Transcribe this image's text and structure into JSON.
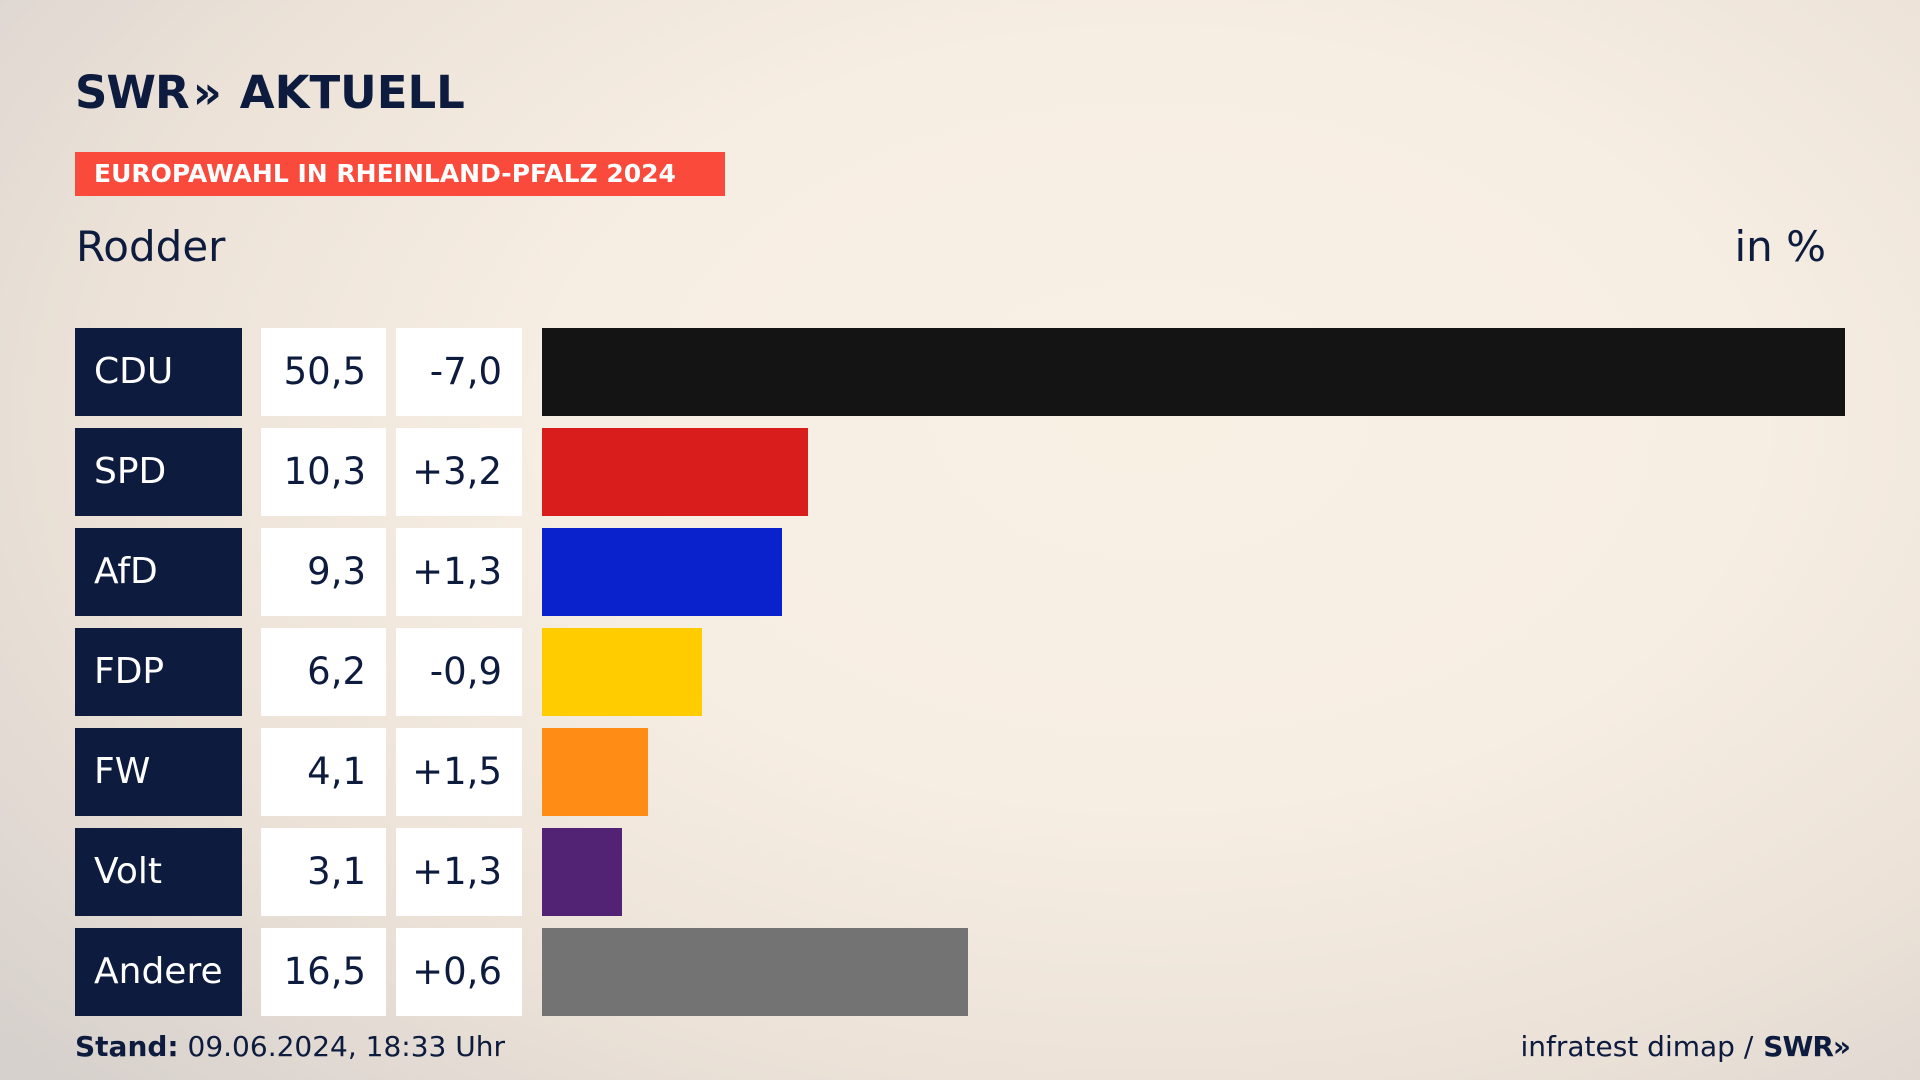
{
  "brand": {
    "logo_swr": "SWR",
    "logo_chevrons": "»",
    "logo_aktuell": "AKTUELL"
  },
  "banner": "EUROPAWAHL IN RHEINLAND-PFALZ 2024",
  "place": "Rodder",
  "unit": "in %",
  "chart_data": {
    "type": "bar",
    "orientation": "horizontal",
    "categories": [
      "CDU",
      "SPD",
      "AfD",
      "FDP",
      "FW",
      "Volt",
      "Andere"
    ],
    "values": [
      50.5,
      10.3,
      9.3,
      6.2,
      4.1,
      3.1,
      16.5
    ],
    "value_labels": [
      "50,5",
      "10,3",
      "9,3",
      "6,2",
      "4,1",
      "3,1",
      "16,5"
    ],
    "changes": [
      -7.0,
      3.2,
      1.3,
      -0.9,
      1.5,
      1.3,
      0.6
    ],
    "change_labels": [
      "-7,0",
      "+3,2",
      "+1,3",
      "-0,9",
      "+1,5",
      "+1,3",
      "+0,6"
    ],
    "colors": [
      "#141414",
      "#d91c1c",
      "#0a22cc",
      "#ffcc00",
      "#ff8c14",
      "#522275",
      "#737373"
    ],
    "xlim": [
      0,
      50.5
    ]
  },
  "footer": {
    "stand_label": "Stand:",
    "stand_value": "09.06.2024, 18:33 Uhr",
    "source": "infratest dimap /",
    "source_logo": "SWR",
    "source_chevrons": "»"
  }
}
